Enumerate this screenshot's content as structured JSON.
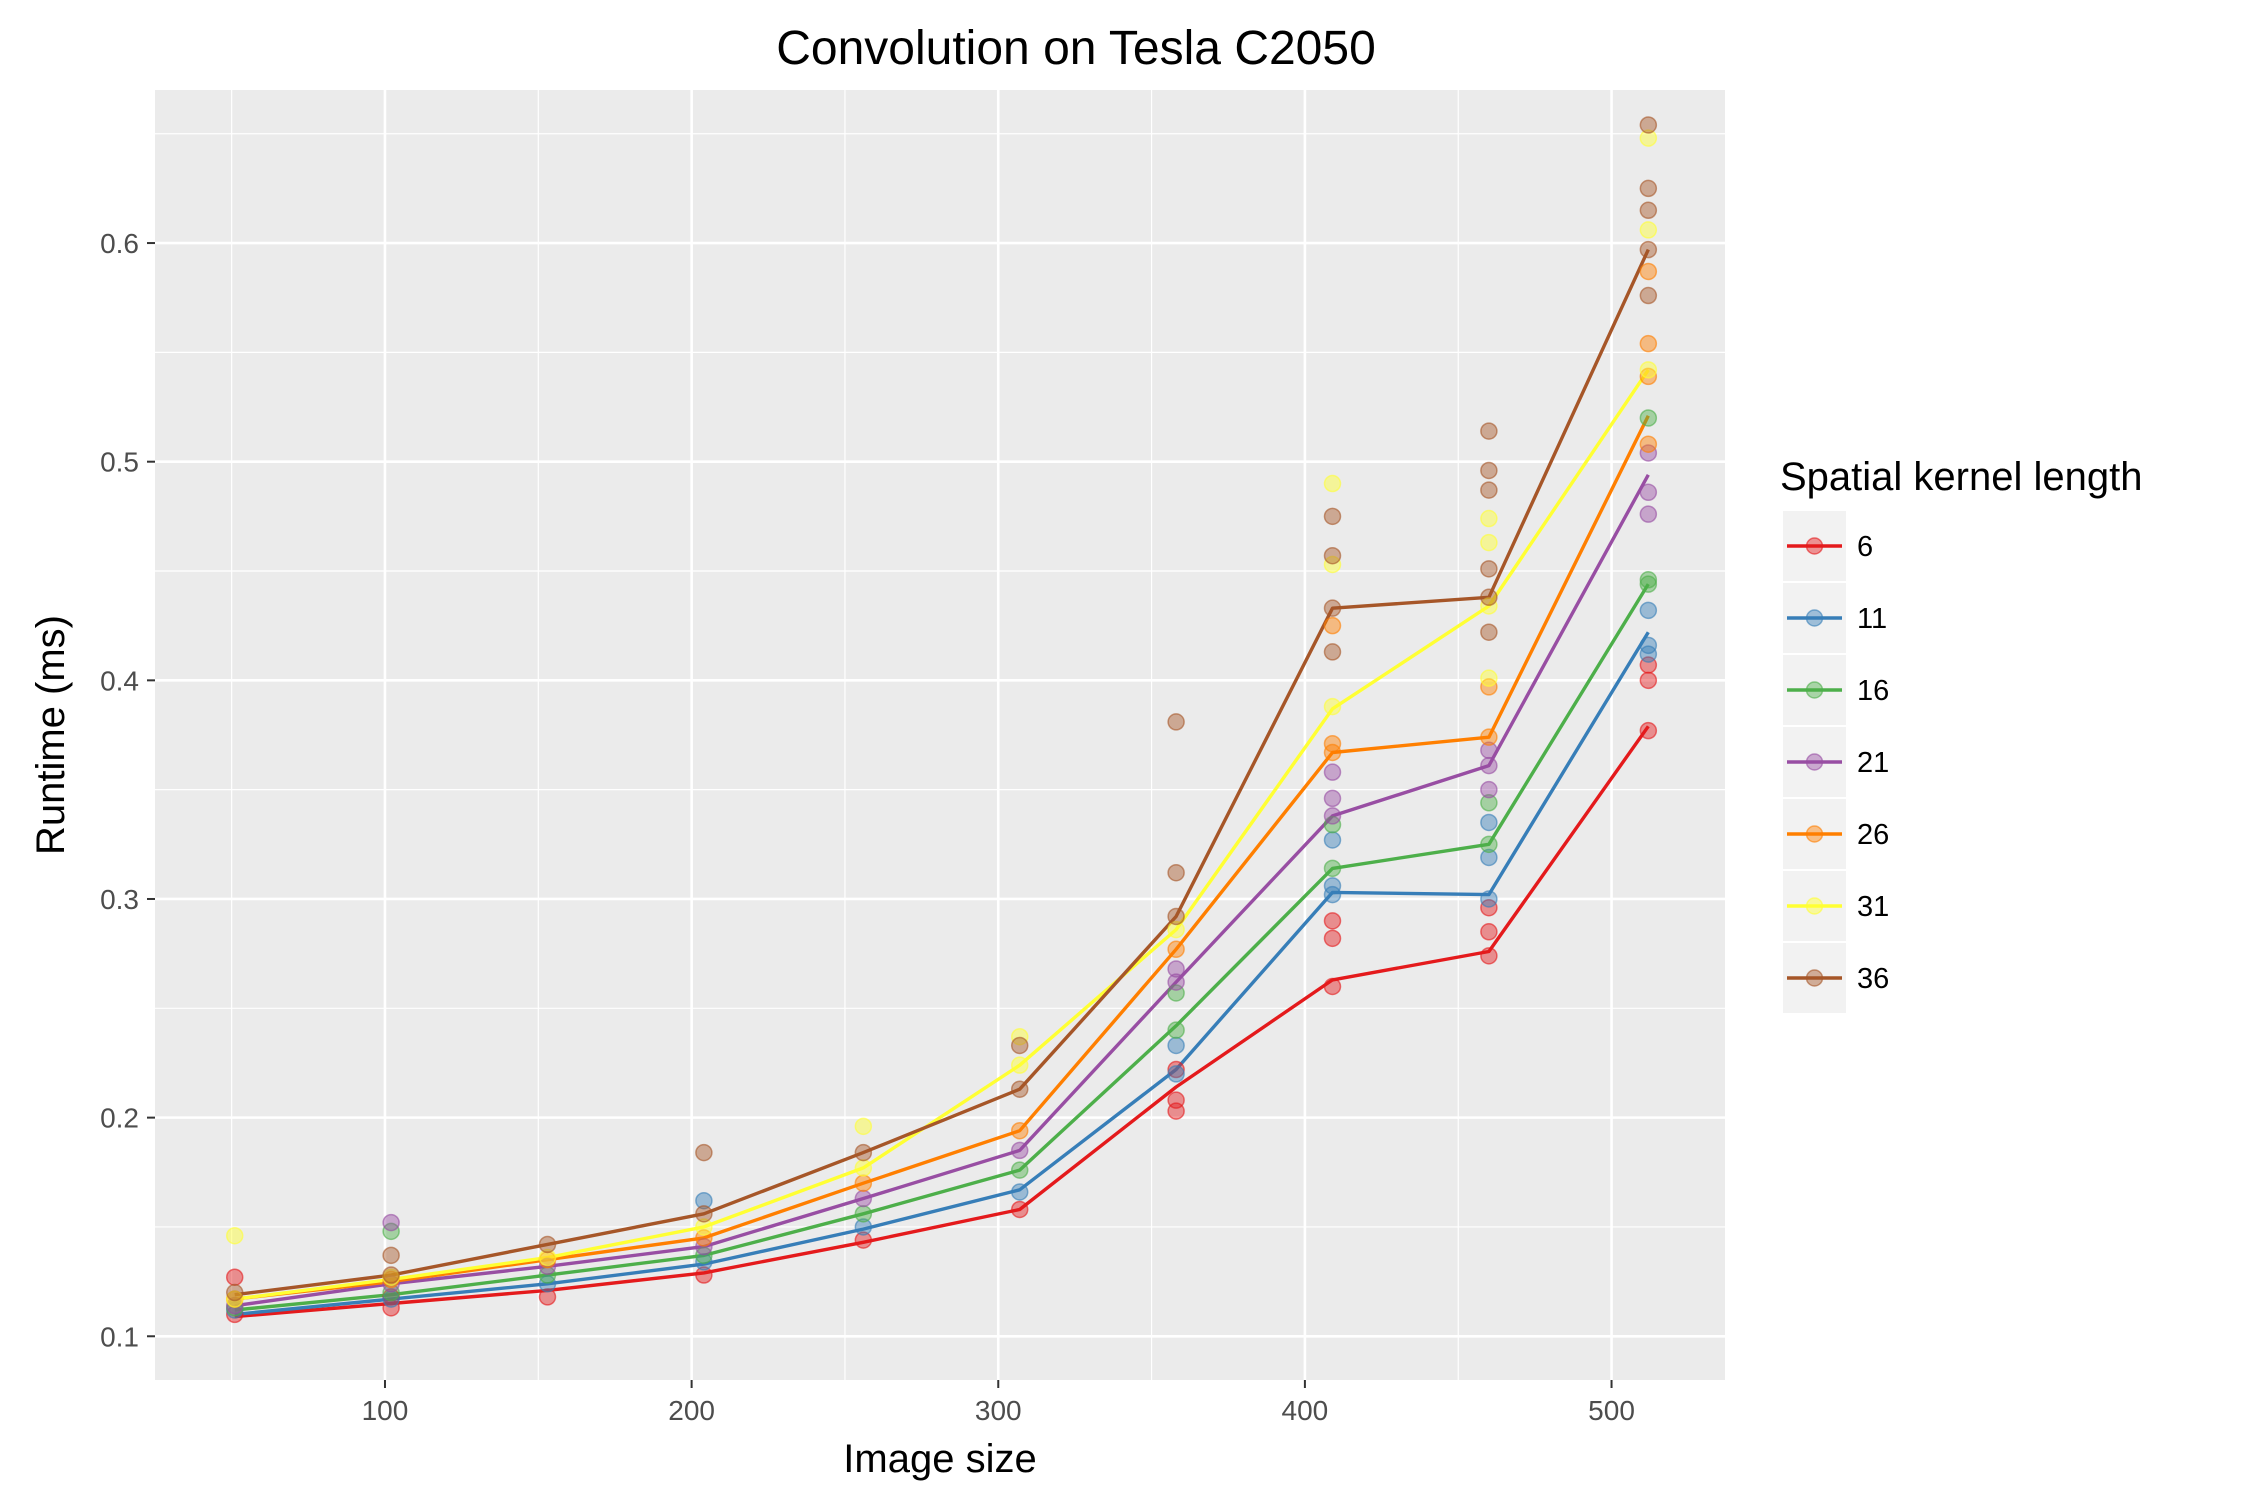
{
  "chart_data": {
    "type": "line",
    "title": "Convolution on Tesla C2050",
    "xlabel": "Image size",
    "ylabel": "Runtime (ms)",
    "xlim": [
      25,
      537
    ],
    "ylim": [
      0.08,
      0.67
    ],
    "x_ticks": [
      100,
      200,
      300,
      400,
      500
    ],
    "y_ticks": [
      0.1,
      0.2,
      0.3,
      0.4,
      0.5,
      0.6
    ],
    "x_tick_labels": [
      "100",
      "200",
      "300",
      "400",
      "500"
    ],
    "y_tick_labels": [
      "0.1",
      "0.2",
      "0.3",
      "0.4",
      "0.5",
      "0.6"
    ],
    "grid": true,
    "legend": {
      "title": "Spatial kernel length",
      "placement": "right"
    },
    "x": [
      51,
      102,
      153,
      204,
      256,
      307,
      358,
      409,
      460,
      512
    ],
    "series": [
      {
        "name": "6",
        "color": "#E41A1C",
        "values": [
          0.109,
          0.115,
          0.121,
          0.129,
          0.143,
          0.158,
          0.214,
          0.263,
          0.276,
          0.379
        ],
        "points": [
          [
            51,
            0.127
          ],
          [
            51,
            0.11
          ],
          [
            102,
            0.113
          ],
          [
            102,
            0.118
          ],
          [
            153,
            0.118
          ],
          [
            204,
            0.128
          ],
          [
            256,
            0.144
          ],
          [
            307,
            0.158
          ],
          [
            358,
            0.203
          ],
          [
            358,
            0.208
          ],
          [
            358,
            0.222
          ],
          [
            409,
            0.26
          ],
          [
            409,
            0.282
          ],
          [
            409,
            0.29
          ],
          [
            460,
            0.274
          ],
          [
            460,
            0.285
          ],
          [
            460,
            0.296
          ],
          [
            512,
            0.377
          ],
          [
            512,
            0.4
          ],
          [
            512,
            0.407
          ]
        ]
      },
      {
        "name": "11",
        "color": "#377EB8",
        "values": [
          0.11,
          0.117,
          0.124,
          0.133,
          0.149,
          0.167,
          0.222,
          0.303,
          0.302,
          0.422
        ],
        "points": [
          [
            51,
            0.112
          ],
          [
            102,
            0.117
          ],
          [
            153,
            0.124
          ],
          [
            204,
            0.162
          ],
          [
            204,
            0.134
          ],
          [
            256,
            0.15
          ],
          [
            307,
            0.166
          ],
          [
            358,
            0.22
          ],
          [
            358,
            0.233
          ],
          [
            409,
            0.302
          ],
          [
            409,
            0.327
          ],
          [
            409,
            0.306
          ],
          [
            460,
            0.3
          ],
          [
            460,
            0.319
          ],
          [
            460,
            0.335
          ],
          [
            512,
            0.412
          ],
          [
            512,
            0.432
          ],
          [
            512,
            0.416
          ]
        ]
      },
      {
        "name": "16",
        "color": "#4DAF4A",
        "values": [
          0.112,
          0.119,
          0.128,
          0.137,
          0.156,
          0.176,
          0.242,
          0.314,
          0.325,
          0.444
        ],
        "points": [
          [
            51,
            0.113
          ],
          [
            102,
            0.148
          ],
          [
            102,
            0.12
          ],
          [
            153,
            0.128
          ],
          [
            204,
            0.137
          ],
          [
            256,
            0.156
          ],
          [
            307,
            0.176
          ],
          [
            358,
            0.24
          ],
          [
            358,
            0.257
          ],
          [
            409,
            0.314
          ],
          [
            409,
            0.334
          ],
          [
            460,
            0.325
          ],
          [
            460,
            0.344
          ],
          [
            512,
            0.444
          ],
          [
            512,
            0.446
          ],
          [
            512,
            0.52
          ]
        ]
      },
      {
        "name": "21",
        "color": "#984EA3",
        "values": [
          0.114,
          0.124,
          0.132,
          0.141,
          0.163,
          0.185,
          0.262,
          0.338,
          0.361,
          0.494
        ],
        "points": [
          [
            51,
            0.114
          ],
          [
            102,
            0.152
          ],
          [
            102,
            0.124
          ],
          [
            153,
            0.132
          ],
          [
            204,
            0.141
          ],
          [
            256,
            0.163
          ],
          [
            307,
            0.185
          ],
          [
            358,
            0.262
          ],
          [
            358,
            0.268
          ],
          [
            409,
            0.338
          ],
          [
            409,
            0.346
          ],
          [
            409,
            0.358
          ],
          [
            460,
            0.361
          ],
          [
            460,
            0.35
          ],
          [
            460,
            0.368
          ],
          [
            512,
            0.476
          ],
          [
            512,
            0.486
          ],
          [
            512,
            0.504
          ]
        ]
      },
      {
        "name": "26",
        "color": "#FF7F00",
        "values": [
          0.117,
          0.125,
          0.135,
          0.145,
          0.17,
          0.194,
          0.277,
          0.367,
          0.374,
          0.521
        ],
        "points": [
          [
            51,
            0.117
          ],
          [
            102,
            0.126
          ],
          [
            153,
            0.135
          ],
          [
            204,
            0.145
          ],
          [
            256,
            0.17
          ],
          [
            307,
            0.194
          ],
          [
            358,
            0.277
          ],
          [
            409,
            0.367
          ],
          [
            409,
            0.371
          ],
          [
            409,
            0.425
          ],
          [
            460,
            0.374
          ],
          [
            460,
            0.397
          ],
          [
            512,
            0.508
          ],
          [
            512,
            0.539
          ],
          [
            512,
            0.554
          ],
          [
            512,
            0.587
          ]
        ]
      },
      {
        "name": "31",
        "color": "#FFFF33",
        "values": [
          0.117,
          0.126,
          0.136,
          0.15,
          0.177,
          0.224,
          0.286,
          0.387,
          0.434,
          0.542
        ],
        "points": [
          [
            51,
            0.146
          ],
          [
            51,
            0.117
          ],
          [
            102,
            0.127
          ],
          [
            153,
            0.136
          ],
          [
            204,
            0.15
          ],
          [
            256,
            0.177
          ],
          [
            256,
            0.196
          ],
          [
            307,
            0.224
          ],
          [
            307,
            0.237
          ],
          [
            358,
            0.286
          ],
          [
            409,
            0.388
          ],
          [
            409,
            0.453
          ],
          [
            409,
            0.49
          ],
          [
            460,
            0.434
          ],
          [
            460,
            0.463
          ],
          [
            460,
            0.474
          ],
          [
            460,
            0.401
          ],
          [
            512,
            0.542
          ],
          [
            512,
            0.606
          ],
          [
            512,
            0.648
          ]
        ]
      },
      {
        "name": "36",
        "color": "#A65628",
        "values": [
          0.119,
          0.128,
          0.142,
          0.156,
          0.184,
          0.213,
          0.292,
          0.433,
          0.438,
          0.597
        ],
        "points": [
          [
            51,
            0.12
          ],
          [
            102,
            0.128
          ],
          [
            102,
            0.137
          ],
          [
            153,
            0.142
          ],
          [
            204,
            0.156
          ],
          [
            204,
            0.184
          ],
          [
            256,
            0.184
          ],
          [
            307,
            0.213
          ],
          [
            307,
            0.233
          ],
          [
            358,
            0.292
          ],
          [
            358,
            0.312
          ],
          [
            358,
            0.381
          ],
          [
            409,
            0.433
          ],
          [
            409,
            0.413
          ],
          [
            409,
            0.457
          ],
          [
            409,
            0.475
          ],
          [
            460,
            0.438
          ],
          [
            460,
            0.422
          ],
          [
            460,
            0.487
          ],
          [
            460,
            0.496
          ],
          [
            460,
            0.514
          ],
          [
            460,
            0.451
          ],
          [
            512,
            0.597
          ],
          [
            512,
            0.615
          ],
          [
            512,
            0.576
          ],
          [
            512,
            0.654
          ],
          [
            512,
            0.625
          ]
        ]
      }
    ]
  }
}
